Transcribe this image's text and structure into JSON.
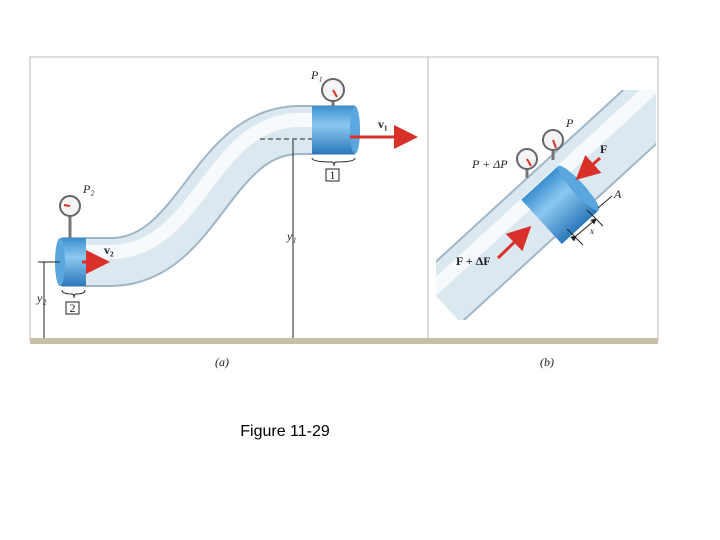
{
  "panels": {
    "a": {
      "label": "(a)",
      "p1": "P₁",
      "v1": "v₁",
      "section1": "1",
      "p2": "P₂",
      "v2": "v₂",
      "y2": "y₂",
      "section2": "2",
      "y1": "y₁"
    },
    "b": {
      "label": "(b)",
      "p": "P",
      "p_plus": "P + ΔP",
      "f": "F",
      "area": "A",
      "f_plus": "F + ΔF",
      "dx": "x"
    }
  },
  "caption": "Figure 11-29"
}
